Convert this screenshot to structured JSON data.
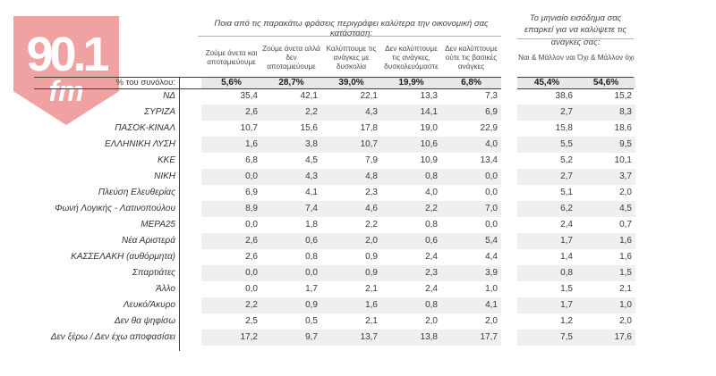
{
  "logo": {
    "frequency": "90.1",
    "band": "fm"
  },
  "colors": {
    "logo_pink": "#f0a2a2",
    "stripe_gray": "#efefef",
    "totals_gray": "#e8e8e8"
  },
  "chart_data": {
    "type": "table",
    "questions": {
      "economic": "Ποια από τις παρακάτω φράσεις περιγράφει καλύτερα την οικονομική σας κατάσταση:",
      "income": "Το μηνιαίο εισόδημα σας επαρκεί για να καλύψετε τις ανάγκες σας:"
    },
    "columns_economic": [
      "Ζούμε άνετα και αποταμιεύουμε",
      "Ζούμε άνετα αλλά δεν αποταμιεύουμε",
      "Καλύπτουμε τις ανάγκες με δυσκολία",
      "Δεν καλύπτουμε τις ανάγκες, δυσκολευόμαστε",
      "Δεν καλύπτουμε ούτε τις βασικές ανάγκες"
    ],
    "columns_income": [
      "Ναι & Μάλλον ναι",
      "Όχι & Μάλλον όχι"
    ],
    "totals_label": "% του συνόλου:",
    "totals_economic": [
      "5,6%",
      "28,7%",
      "39,0%",
      "19,9%",
      "6,8%"
    ],
    "totals_income": [
      "45,4%",
      "54,6%"
    ],
    "rows": [
      {
        "label": "ΝΔ",
        "economic": [
          "35,4",
          "42,1",
          "22,1",
          "13,3",
          "7,3"
        ],
        "income": [
          "38,6",
          "15,2"
        ]
      },
      {
        "label": "ΣΥΡΙΖΑ",
        "economic": [
          "2,6",
          "2,2",
          "4,3",
          "14,1",
          "6,9"
        ],
        "income": [
          "2,7",
          "8,3"
        ]
      },
      {
        "label": "ΠΑΣΟΚ-ΚΙΝΑΛ",
        "economic": [
          "10,7",
          "15,6",
          "17,8",
          "19,0",
          "22,9"
        ],
        "income": [
          "15,8",
          "18,6"
        ]
      },
      {
        "label": "ΕΛΛΗΝΙΚΗ ΛΥΣΗ",
        "economic": [
          "1,6",
          "3,8",
          "10,7",
          "10,6",
          "4,0"
        ],
        "income": [
          "5,5",
          "9,5"
        ]
      },
      {
        "label": "ΚΚΕ",
        "economic": [
          "6,8",
          "4,5",
          "7,9",
          "10,9",
          "13,4"
        ],
        "income": [
          "5,2",
          "10,1"
        ]
      },
      {
        "label": "ΝΙΚΗ",
        "economic": [
          "0,0",
          "4,3",
          "4,8",
          "0,8",
          "0,0"
        ],
        "income": [
          "2,7",
          "3,7"
        ]
      },
      {
        "label": "Πλεύση Ελευθερίας",
        "economic": [
          "6,9",
          "4,1",
          "2,3",
          "4,0",
          "0,0"
        ],
        "income": [
          "5,1",
          "2,0"
        ]
      },
      {
        "label": "Φωνή Λογικής - Λατινοπούλου",
        "economic": [
          "8,9",
          "7,4",
          "4,6",
          "2,2",
          "7,0"
        ],
        "income": [
          "6,2",
          "4,5"
        ]
      },
      {
        "label": "ΜΕΡΑ25",
        "economic": [
          "0,0",
          "1,8",
          "2,2",
          "0,8",
          "0,0"
        ],
        "income": [
          "2,4",
          "0,7"
        ]
      },
      {
        "label": "Νέα Αριστερά",
        "economic": [
          "2,6",
          "0,6",
          "2,0",
          "0,6",
          "5,4"
        ],
        "income": [
          "1,7",
          "1,6"
        ]
      },
      {
        "label": "ΚΑΣΣΕΛΑΚΗ (αυθόρμητα)",
        "economic": [
          "2,6",
          "0,8",
          "0,9",
          "2,4",
          "4,4"
        ],
        "income": [
          "1,4",
          "1,6"
        ]
      },
      {
        "label": "Σπαρτιάτες",
        "economic": [
          "0,0",
          "0,0",
          "0,9",
          "2,3",
          "3,9"
        ],
        "income": [
          "0,8",
          "1,5"
        ]
      },
      {
        "label": "Άλλο",
        "economic": [
          "0,0",
          "1,7",
          "2,1",
          "2,4",
          "1,0"
        ],
        "income": [
          "1,5",
          "2,1"
        ]
      },
      {
        "label": "Λευκό/Άκυρο",
        "economic": [
          "2,2",
          "0,9",
          "1,6",
          "0,8",
          "4,1"
        ],
        "income": [
          "1,7",
          "1,0"
        ]
      },
      {
        "label": "Δεν θα ψηφίσω",
        "economic": [
          "2,5",
          "0,5",
          "2,1",
          "2,0",
          "2,0"
        ],
        "income": [
          "1,2",
          "2,0"
        ]
      },
      {
        "label": "Δεν ξέρω / Δεν έχω αποφασίσει",
        "economic": [
          "17,2",
          "9,7",
          "13,7",
          "13,8",
          "17,7"
        ],
        "income": [
          "7,5",
          "17,6"
        ]
      }
    ]
  }
}
